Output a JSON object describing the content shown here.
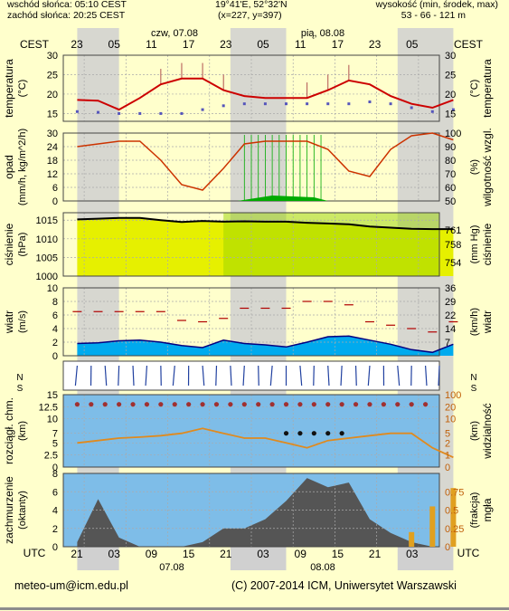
{
  "header": {
    "sunrise": "wschód słońca: 05:10 CEST",
    "sunset": "zachód słońca: 20:25 CEST",
    "coords": "19°41'E, 52°32'N",
    "grid": "(x=227, y=397)",
    "elev_label": "wysokość (min, środek, max)",
    "elev_value": "53 - 66 - 121 m"
  },
  "time": {
    "tz_top": "CEST",
    "tz_bottom": "UTC",
    "day1_top": "czw, 07.08",
    "day2_top": "pią, 08.08",
    "day1_bottom": "07.08",
    "day2_bottom": "08.08",
    "top_hours": [
      "23",
      "05",
      "11",
      "17",
      "23",
      "05",
      "11",
      "17",
      "23",
      "05"
    ],
    "bottom_hours": [
      "21",
      "03",
      "09",
      "15",
      "21",
      "03",
      "09",
      "15",
      "21",
      "03"
    ]
  },
  "footer": {
    "email": "meteo-um@icm.edu.pl",
    "copyright": "(C) 2007-2014 ICM, Uniwersytet Warszawski"
  },
  "colors": {
    "background": "#ffffcc",
    "night": "#d0d0d0",
    "temperature": "#cc0000",
    "dewpoint": "#5555bb",
    "precip": "#00aa00",
    "humidity": "#cc3300",
    "wind": "#00aaee",
    "visibility": "#e08a1e",
    "sky": "#7ebde8"
  },
  "chart_data": [
    {
      "type": "line",
      "panel": "temperatura",
      "ylabel": "temperatura (°C)",
      "ylabel_right": "(°C) temperatura",
      "ylim": [
        13,
        30
      ],
      "ticks": [
        15,
        20,
        25,
        30
      ],
      "x_hours": [
        0,
        3,
        6,
        9,
        12,
        15,
        18,
        21,
        24,
        27,
        30,
        33,
        36,
        39,
        42,
        45,
        48,
        51,
        54
      ],
      "series": [
        {
          "name": "temperatura",
          "values": [
            18.5,
            18.3,
            16,
            19,
            22.5,
            24,
            24,
            21,
            19.5,
            19,
            19,
            19,
            21,
            23.5,
            22.5,
            19.5,
            17.5,
            16.5,
            18.5
          ]
        },
        {
          "name": "punkt rosy",
          "values": [
            15.5,
            15.3,
            15,
            15,
            15,
            15,
            16,
            17,
            17.5,
            17.5,
            17.5,
            17.5,
            17.5,
            17.5,
            18,
            17.5,
            16.5,
            15.5,
            16
          ]
        }
      ]
    },
    {
      "type": "bar",
      "panel": "opad",
      "ylabel": "opad (mm/h, kg/m^2/h)",
      "ylabel_right": "(%) wilgotność wzgl.",
      "ylim": [
        0,
        30
      ],
      "ticks": [
        0,
        6,
        12,
        18,
        24,
        30
      ],
      "ticks_right": [
        50,
        60,
        70,
        80,
        90,
        100
      ],
      "series": [
        {
          "name": "wilgotność",
          "values": [
            90,
            92,
            94,
            94,
            80,
            62,
            58,
            74,
            92,
            94,
            94,
            94,
            88,
            72,
            68,
            88,
            98,
            100,
            95
          ]
        }
      ]
    },
    {
      "type": "area",
      "panel": "ciśnienie",
      "ylabel": "ciśnienie (hPa)",
      "ylabel_right": "(mm Hg) ciśnienie",
      "ylim": [
        1000,
        1017
      ],
      "ticks": [
        1000,
        1005,
        1010,
        1015
      ],
      "ticks_right": [
        754,
        758,
        761
      ],
      "series": [
        {
          "name": "ciśnienie",
          "values": [
            1015.2,
            1015.4,
            1015.6,
            1015.6,
            1015,
            1014.5,
            1014.8,
            1014.6,
            1014.7,
            1014.6,
            1014.6,
            1014.3,
            1014.1,
            1013.9,
            1013.3,
            1013,
            1012.7,
            1012.6,
            1012.6
          ]
        }
      ]
    },
    {
      "type": "area",
      "panel": "wiatr",
      "ylabel": "wiatr (m/s)",
      "ylabel_right": "(km/h) wiatr",
      "ylim": [
        0,
        10
      ],
      "ticks": [
        0,
        2,
        4,
        6,
        8,
        10
      ],
      "ticks_right": [
        7,
        14,
        22,
        29,
        36
      ],
      "series": [
        {
          "name": "wiatr",
          "values": [
            1.8,
            1.9,
            2.2,
            2.3,
            2.0,
            1.5,
            1.2,
            2.3,
            1.8,
            1.6,
            1.3,
            2.0,
            2.8,
            2.9,
            2.3,
            1.7,
            0.9,
            0.5,
            1.7
          ]
        },
        {
          "name": "porywy",
          "values": [
            6.5,
            6.5,
            6.5,
            6.5,
            6.5,
            5.2,
            5,
            5.5,
            7,
            7,
            7,
            8,
            8,
            7.5,
            5,
            4.5,
            4,
            3.5,
            5
          ]
        }
      ]
    },
    {
      "type": "line",
      "panel": "widzialność",
      "ylabel": "rozciągł. chm. (km)",
      "ylabel_right": "(km) widzialność",
      "ylim": [
        0,
        15
      ],
      "ticks": [
        0.0,
        2.5,
        5.0,
        7.0,
        10.0,
        12.5,
        15.0
      ],
      "ticks_right": [
        0,
        1,
        2,
        5,
        10,
        20,
        100
      ],
      "series": [
        {
          "name": "widzialność",
          "values": [
            5,
            5.5,
            6,
            6.2,
            6.5,
            7,
            8,
            7,
            6,
            6,
            5,
            4,
            5.5,
            6,
            6.5,
            7,
            7,
            4,
            2
          ]
        }
      ]
    },
    {
      "type": "area",
      "panel": "zachmurzenie",
      "ylabel": "zachmurzenie (oktanty)",
      "ylabel_right": "(frakcja) mgła",
      "ylim": [
        0,
        8
      ],
      "ticks": [
        0,
        2,
        4,
        6,
        8
      ],
      "ticks_right": [
        0,
        0.25,
        0.5,
        0.75
      ],
      "series": [
        {
          "name": "zachmurzenie",
          "values": [
            0.5,
            5.2,
            1,
            0,
            0,
            0,
            0.5,
            2,
            2,
            3,
            5,
            7.5,
            6.5,
            7,
            3,
            1.5,
            0.5,
            0,
            0
          ]
        },
        {
          "name": "mgła",
          "values": [
            0,
            0,
            0,
            0,
            0,
            0,
            0,
            0,
            0,
            0,
            0,
            0,
            0,
            0,
            0,
            0,
            0.2,
            0.55,
            0.8
          ]
        }
      ]
    }
  ]
}
